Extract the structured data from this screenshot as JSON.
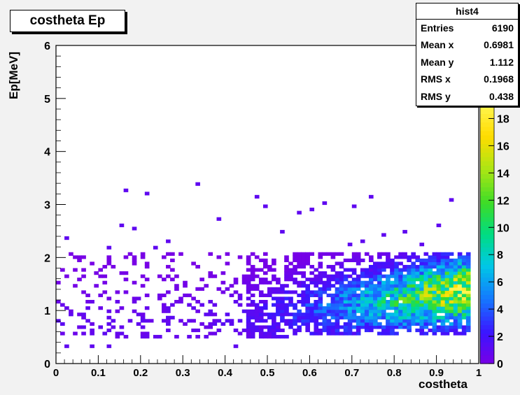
{
  "chart_data": {
    "type": "heatmap",
    "title": "costheta Ep",
    "xlabel": "costheta",
    "ylabel": "Ep[MeV]",
    "xlim": [
      0,
      1
    ],
    "ylim": [
      0,
      6
    ],
    "x_ticks": [
      "0",
      "0.1",
      "0.2",
      "0.3",
      "0.4",
      "0.5",
      "0.6",
      "0.7",
      "0.8",
      "0.9",
      "1"
    ],
    "y_ticks": [
      "0",
      "1",
      "2",
      "3",
      "4",
      "5",
      "6"
    ],
    "colorbar": {
      "min": 0,
      "max": 19,
      "tick_labels": [
        "0",
        "2",
        "4",
        "6",
        "8",
        "10",
        "12",
        "14",
        "16",
        "18"
      ]
    },
    "stats": {
      "name": "hist4",
      "rows": [
        {
          "label": "Entries",
          "value": "6190"
        },
        {
          "label": "Mean x",
          "value": "0.6981"
        },
        {
          "label": "Mean y",
          "value": "1.112"
        },
        {
          "label": "RMS x",
          "value": "0.1968"
        },
        {
          "label": "RMS y",
          "value": "0.438"
        }
      ]
    },
    "grid": false,
    "colors": {
      "background": "#f2f2f2",
      "frame": "#ffffff"
    }
  }
}
